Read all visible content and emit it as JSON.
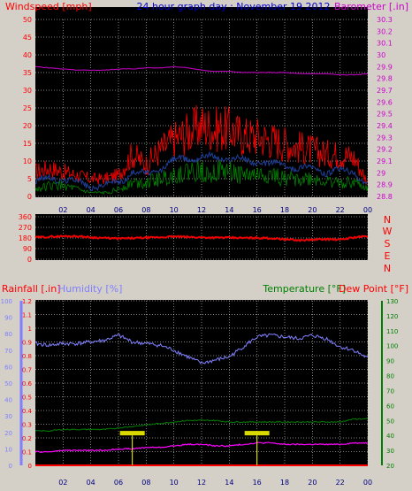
{
  "header": {
    "left_title": "Windspeed [mph]",
    "center_title": "24 hour graph day : November 19 2012",
    "right_title": "Barometer [.in]"
  },
  "colors": {
    "wind_gust": "#ff0000",
    "wind_avg": "#008000",
    "wind_mid": "#1f3f99",
    "barometer": "#cc00cc",
    "direction": "#ee0000",
    "humidity": "#8080ff",
    "rainfall": "#ff0000",
    "temperature": "#008000",
    "dewpoint": "#ff00ff",
    "event": "#ffff00",
    "grid": "#ffffff",
    "axis_tick": "#000080"
  },
  "chart_data": [
    {
      "type": "line",
      "title": "24 hour graph day : November 19 2012",
      "x_ticks": [
        "02",
        "04",
        "06",
        "08",
        "10",
        "12",
        "14",
        "16",
        "18",
        "20",
        "22",
        "00"
      ],
      "ylabel_left": "Windspeed [mph]",
      "ylabel_right": "Barometer [.in]",
      "ylim_left": [
        0,
        50
      ],
      "ylim_right": [
        28.8,
        30.3
      ],
      "yticks_left": [
        "0",
        "5",
        "10",
        "15",
        "20",
        "25",
        "30",
        "35",
        "40",
        "45",
        "50"
      ],
      "yticks_right": [
        "28.8",
        "28.9",
        "29",
        "29.1",
        "29.2",
        "29.3",
        "29.4",
        "29.5",
        "29.6",
        "29.7",
        "29.8",
        "29.9",
        "30",
        "30.1",
        "30.2",
        "30.3"
      ],
      "grid": true,
      "x_hours": [
        0,
        1,
        2,
        3,
        4,
        5,
        6,
        7,
        8,
        9,
        10,
        11,
        12,
        13,
        14,
        15,
        16,
        17,
        18,
        19,
        20,
        21,
        22,
        23,
        24
      ],
      "series": [
        {
          "axis": "left",
          "values": [
            7,
            8,
            7,
            6,
            5,
            5,
            6,
            12,
            9,
            13,
            16,
            18,
            20,
            19,
            19,
            17,
            17,
            16,
            15,
            14,
            13,
            12,
            12,
            11,
            4
          ]
        },
        {
          "axis": "left",
          "values": [
            4,
            5,
            5,
            4,
            3,
            3,
            4,
            7,
            6,
            8,
            10,
            11,
            11,
            11,
            11,
            10,
            10,
            9,
            9,
            8,
            8,
            7,
            7,
            7,
            3
          ]
        },
        {
          "axis": "left",
          "values": [
            2,
            3,
            3,
            2,
            1,
            1,
            2,
            4,
            4,
            5,
            6,
            7,
            7,
            7,
            7,
            6,
            6,
            6,
            5,
            5,
            5,
            4,
            4,
            4,
            2
          ]
        },
        {
          "axis": "right",
          "values": [
            29.9,
            29.89,
            29.88,
            29.87,
            29.87,
            29.87,
            29.88,
            29.88,
            29.89,
            29.89,
            29.9,
            29.89,
            29.87,
            29.86,
            29.86,
            29.85,
            29.85,
            29.85,
            29.85,
            29.84,
            29.84,
            29.84,
            29.83,
            29.83,
            29.84
          ]
        }
      ]
    },
    {
      "type": "line",
      "title": "",
      "x_ticks": [
        "02",
        "04",
        "06",
        "08",
        "10",
        "12",
        "14",
        "16",
        "18",
        "20",
        "22",
        "00"
      ],
      "ylim": [
        0,
        360
      ],
      "yticks": [
        "0",
        "90",
        "180",
        "270",
        "360"
      ],
      "compass_labels": [
        "N",
        "W",
        "S",
        "E",
        "N"
      ],
      "grid": true,
      "x_hours": [
        0,
        1,
        2,
        3,
        4,
        5,
        6,
        7,
        8,
        9,
        10,
        11,
        12,
        13,
        14,
        15,
        16,
        17,
        18,
        19,
        20,
        21,
        22,
        23,
        24
      ],
      "series": [
        {
          "values": [
            185,
            190,
            195,
            195,
            185,
            180,
            175,
            178,
            182,
            186,
            192,
            188,
            185,
            183,
            182,
            180,
            181,
            178,
            170,
            160,
            165,
            170,
            165,
            185,
            195
          ]
        }
      ]
    },
    {
      "type": "line",
      "title": "",
      "x_ticks": [
        "02",
        "04",
        "06",
        "08",
        "10",
        "12",
        "14",
        "16",
        "18",
        "20",
        "22",
        "00"
      ],
      "ylabel_rain": "Rainfall [.in]",
      "ylabel_humidity": "Humidity [%]",
      "ylabel_temp": "Temperature [°F]",
      "ylabel_dew": "Dew Point [°F]",
      "ylim_rain": [
        0,
        1.2
      ],
      "ylim_humidity": [
        0,
        100
      ],
      "ylim_temp": [
        20,
        130
      ],
      "yticks_rain": [
        "0",
        "0.1",
        "0.2",
        "0.3",
        "0.4",
        "0.5",
        "0.6",
        "0.7",
        "0.8",
        "0.9",
        "1",
        "1.1",
        "1.2"
      ],
      "yticks_humidity": [
        "0",
        "10",
        "20",
        "30",
        "40",
        "50",
        "60",
        "70",
        "80",
        "90",
        "100"
      ],
      "yticks_temp": [
        "20",
        "30",
        "40",
        "50",
        "60",
        "70",
        "80",
        "90",
        "100",
        "110",
        "120",
        "130"
      ],
      "grid": true,
      "x_hours": [
        0,
        1,
        2,
        3,
        4,
        5,
        6,
        7,
        8,
        9,
        10,
        11,
        12,
        13,
        14,
        15,
        16,
        17,
        18,
        19,
        20,
        21,
        22,
        23,
        24
      ],
      "series": [
        {
          "values": [
            74,
            73,
            74,
            74,
            75,
            76,
            79,
            75,
            74,
            73,
            70,
            66,
            62,
            64,
            66,
            72,
            78,
            79,
            78,
            77,
            79,
            77,
            72,
            70,
            65
          ]
        },
        {
          "values": [
            43,
            43,
            44,
            44,
            44,
            44,
            45,
            46,
            47,
            48,
            49,
            50,
            50,
            50,
            49,
            49,
            49,
            49,
            49,
            49,
            49,
            49,
            49,
            51,
            51
          ]
        },
        {
          "values": [
            29,
            29,
            30,
            30,
            30,
            30,
            31,
            31,
            32,
            32,
            33,
            34,
            34,
            33,
            33,
            34,
            35,
            35,
            34,
            34,
            34,
            34,
            34,
            35,
            35
          ]
        },
        {
          "values": [
            0,
            0,
            0,
            0,
            0,
            0,
            0,
            0,
            0,
            0,
            0,
            0,
            0,
            0,
            0,
            0,
            0,
            0,
            0,
            0,
            0,
            0,
            0,
            0,
            0
          ]
        }
      ],
      "event_hours": [
        7,
        16
      ]
    }
  ]
}
